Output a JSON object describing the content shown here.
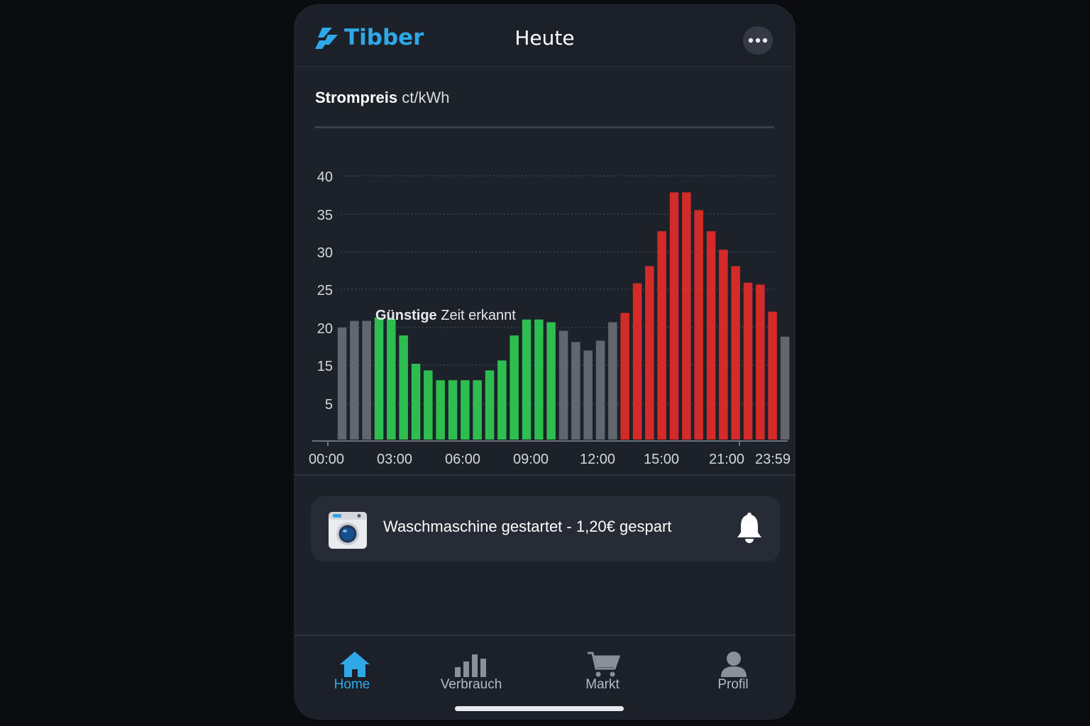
{
  "app": {
    "brand": "Tibber",
    "title": "Heute",
    "accent": "#2fa8e8"
  },
  "chart_section": {
    "title_bold": "Strompreis",
    "title_unit": "ct/kWh"
  },
  "chart_data": {
    "type": "bar",
    "ylabel": "ct/kWh",
    "y_tick_labels": [
      "40",
      "35",
      "30",
      "25",
      "20",
      "15",
      "5"
    ],
    "x_tick_labels": [
      "00:00",
      "03:00",
      "06:00",
      "09:00",
      "12:00",
      "15:00",
      "21:00",
      "23:59"
    ],
    "annotation": {
      "bold": "Günstige",
      "rest": "Zeit erkannt"
    },
    "colors": {
      "normal": "#62666f",
      "cheap": "#2ebd4f",
      "expensive": "#d42a2a"
    },
    "values": [
      17,
      18,
      18,
      18.5,
      18.3,
      15.8,
      11.5,
      10.5,
      9,
      9,
      9,
      9,
      10.5,
      12,
      15.8,
      18.2,
      18.2,
      17.8,
      16.5,
      14.8,
      13.5,
      15,
      17.8,
      19.2,
      23.7,
      26.3,
      31.6,
      37.5,
      37.5,
      34.8,
      31.6,
      28.8,
      26.3,
      23.8,
      23.5,
      19.4,
      15.6
    ],
    "categories": [
      "normal",
      "normal",
      "normal",
      "cheap",
      "cheap",
      "cheap",
      "cheap",
      "cheap",
      "cheap",
      "cheap",
      "cheap",
      "cheap",
      "cheap",
      "cheap",
      "cheap",
      "cheap",
      "cheap",
      "cheap",
      "normal",
      "normal",
      "normal",
      "normal",
      "normal",
      "expensive",
      "expensive",
      "expensive",
      "expensive",
      "expensive",
      "expensive",
      "expensive",
      "expensive",
      "expensive",
      "expensive",
      "expensive",
      "expensive",
      "expensive",
      "normal"
    ]
  },
  "notification": {
    "text": "Waschmaschine gestartet - 1,20€ gespart",
    "icon": "washing-machine-icon",
    "action_icon": "bell-icon"
  },
  "tabs": [
    {
      "label": "Home",
      "icon": "home-icon",
      "active": true
    },
    {
      "label": "Verbrauch",
      "icon": "bar-chart-icon",
      "active": false
    },
    {
      "label": "Markt",
      "icon": "cart-icon",
      "active": false
    },
    {
      "label": "Profil",
      "icon": "person-icon",
      "active": false
    }
  ]
}
